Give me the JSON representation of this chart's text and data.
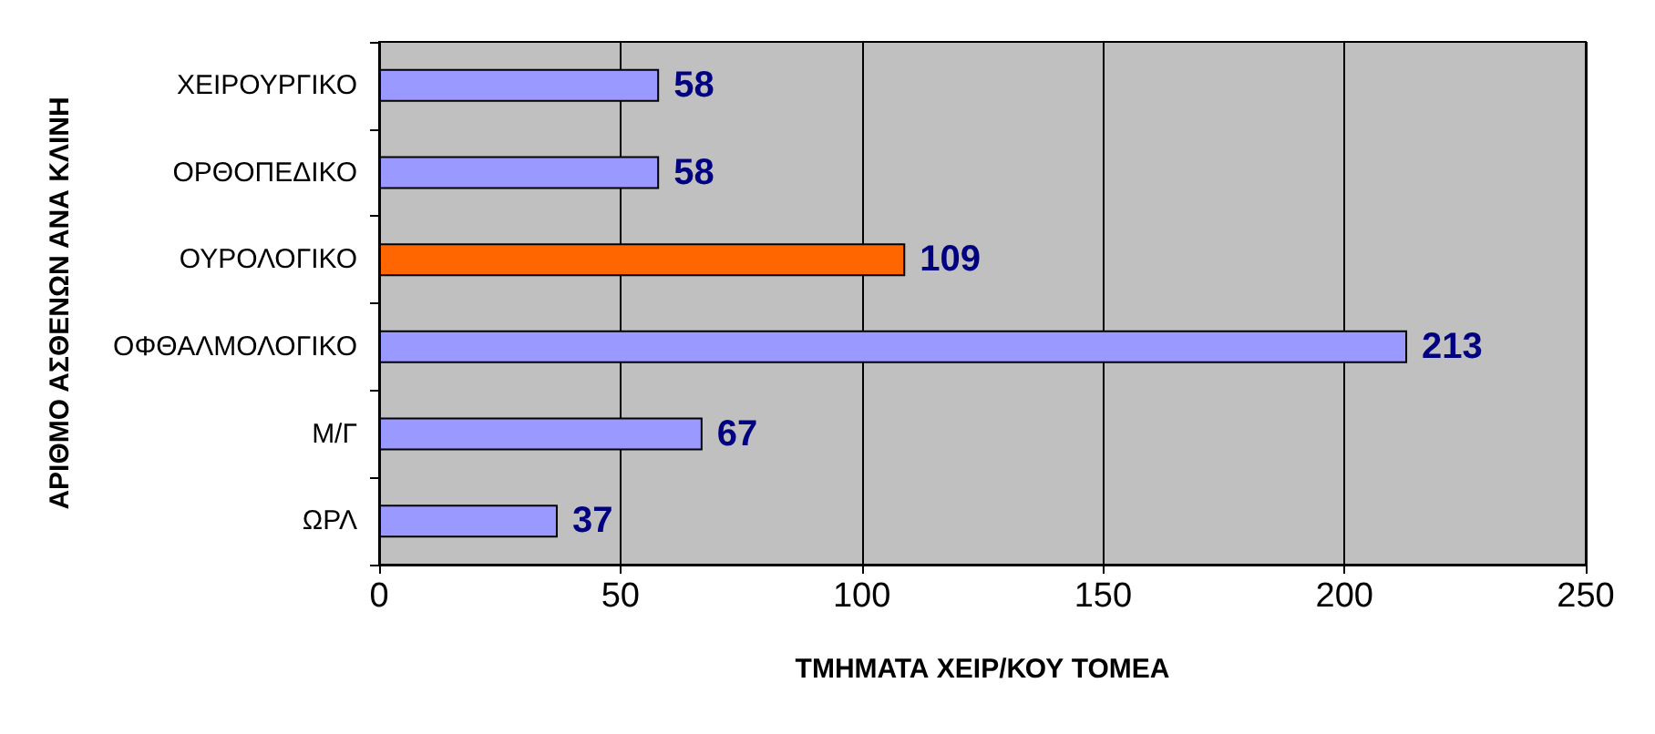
{
  "chart_data": {
    "type": "bar",
    "orientation": "horizontal",
    "xlabel": "ΤΜΗΜΑΤΑ ΧΕΙΡ/ΚΟΥ ΤΟΜΕΑ",
    "ylabel": "ΑΡΙΘΜΟ ΑΣΘΕΝΩΝ ΑΝΑ ΚΛΙΝΗ",
    "categories": [
      "ΧΕΙΡΟΥΡΓΙΚΟ",
      "ΟΡΘΟΠΕΔΙΚΟ",
      "ΟΥΡΟΛΟΓΙΚΟ",
      "ΟΦΘΑΛΜΟΛΟΓΙΚΟ",
      "Μ/Γ",
      "ΩΡΛ"
    ],
    "values": [
      58,
      58,
      109,
      213,
      67,
      37
    ],
    "colors": [
      "#9999ff",
      "#9999ff",
      "#ff6600",
      "#9999ff",
      "#9999ff",
      "#9999ff"
    ],
    "xlim": [
      0,
      250
    ],
    "xticks": [
      0,
      50,
      100,
      150,
      200,
      250
    ],
    "grid": "x",
    "data_labels": true
  }
}
